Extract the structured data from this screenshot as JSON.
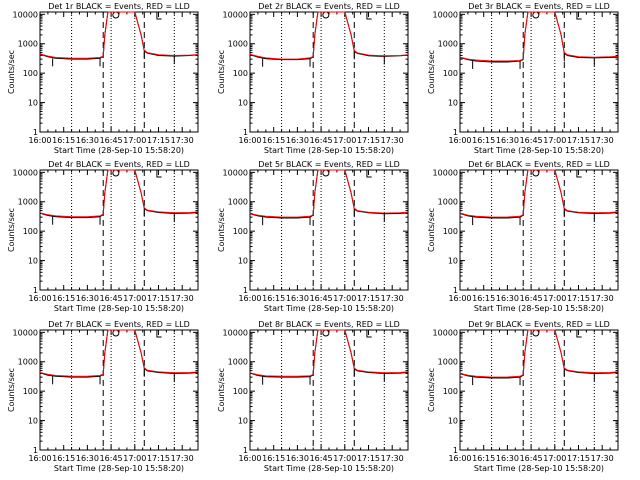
{
  "figure": {
    "xlabel": "Start Time (28-Sep-10 15:58:20)",
    "ylabel": "Counts/sec",
    "xticks": [
      "16:00",
      "16:15",
      "16:30",
      "16:45",
      "17:00",
      "17:15",
      "17:30"
    ],
    "yticks": [
      "1",
      "10",
      "100",
      "1000",
      "10000"
    ],
    "colors": {
      "events": "#000000",
      "lld": "#ff0000"
    }
  },
  "chart_data": [
    {
      "type": "line",
      "title": "Det 1r BLACK = Events, RED = LLD",
      "xlabel": "Start Time (28-Sep-10 15:58:20)",
      "ylabel": "Counts/sec",
      "y_scale": "log",
      "ylim": [
        1,
        12000
      ],
      "xlim_minutes_after_16:00": [
        0,
        100
      ],
      "dotted_vertical_lines_minutes_after_16:00": [
        20,
        45,
        60,
        85
      ],
      "dashed_vertical_lines_minutes_after_16:00": [
        40,
        66
      ],
      "series": [
        {
          "color": "red",
          "x_minutes_after_16:00": [
            0,
            5,
            10,
            20,
            30,
            38,
            40,
            41,
            43,
            60,
            64,
            66,
            68,
            75,
            85,
            95,
            100
          ],
          "y": [
            450,
            380,
            340,
            320,
            320,
            340,
            380,
            2000,
            12000,
            12000,
            2000,
            600,
            500,
            420,
            400,
            410,
            430
          ]
        },
        {
          "color": "black",
          "x_minutes_after_16:00": [
            0,
            5,
            10,
            20,
            30,
            38,
            40,
            41,
            43,
            60,
            64,
            66,
            68,
            75,
            85,
            95,
            100
          ],
          "y": [
            440,
            360,
            320,
            300,
            300,
            320,
            370,
            2000,
            12000,
            12000,
            2000,
            560,
            480,
            400,
            380,
            400,
            420
          ]
        }
      ]
    },
    {
      "type": "line",
      "title": "Det 2r BLACK = Events, RED = LLD",
      "xlabel": "Start Time (28-Sep-10 15:58:20)",
      "ylabel": "Counts/sec",
      "y_scale": "log",
      "ylim": [
        1,
        12000
      ],
      "xlim_minutes_after_16:00": [
        0,
        100
      ],
      "dotted_vertical_lines_minutes_after_16:00": [
        20,
        45,
        60,
        85
      ],
      "dashed_vertical_lines_minutes_after_16:00": [
        40,
        66
      ],
      "series": [
        {
          "color": "red",
          "x_minutes_after_16:00": [
            0,
            5,
            10,
            20,
            30,
            38,
            40,
            41,
            43,
            60,
            64,
            66,
            68,
            75,
            85,
            95,
            100
          ],
          "y": [
            440,
            370,
            330,
            300,
            300,
            330,
            370,
            2000,
            12000,
            12000,
            2000,
            590,
            490,
            410,
            390,
            400,
            420
          ]
        },
        {
          "color": "black",
          "x_minutes_after_16:00": [
            0,
            5,
            10,
            20,
            30,
            38,
            40,
            41,
            43,
            60,
            64,
            66,
            68,
            75,
            85,
            95,
            100
          ],
          "y": [
            430,
            350,
            310,
            290,
            290,
            310,
            360,
            2000,
            12000,
            12000,
            2000,
            550,
            470,
            390,
            370,
            390,
            410
          ]
        }
      ]
    },
    {
      "type": "line",
      "title": "Det 3r BLACK = Events, RED = LLD",
      "xlabel": "Start Time (28-Sep-10 15:58:20)",
      "ylabel": "Counts/sec",
      "y_scale": "log",
      "ylim": [
        1,
        12000
      ],
      "xlim_minutes_after_16:00": [
        0,
        100
      ],
      "dotted_vertical_lines_minutes_after_16:00": [
        20,
        45,
        60,
        85
      ],
      "dashed_vertical_lines_minutes_after_16:00": [
        40,
        66
      ],
      "series": [
        {
          "color": "red",
          "x_minutes_after_16:00": [
            0,
            5,
            10,
            20,
            30,
            38,
            40,
            41,
            43,
            60,
            64,
            66,
            68,
            75,
            85,
            95,
            100
          ],
          "y": [
            350,
            300,
            280,
            260,
            260,
            270,
            300,
            2000,
            12000,
            12000,
            2000,
            500,
            420,
            360,
            350,
            360,
            370
          ]
        },
        {
          "color": "black",
          "x_minutes_after_16:00": [
            0,
            5,
            10,
            20,
            30,
            38,
            40,
            41,
            43,
            60,
            64,
            66,
            68,
            75,
            85,
            95,
            100
          ],
          "y": [
            340,
            290,
            260,
            240,
            240,
            260,
            290,
            2000,
            12000,
            12000,
            2000,
            470,
            400,
            340,
            330,
            340,
            350
          ]
        }
      ]
    },
    {
      "type": "line",
      "title": "Det 4r BLACK = Events, RED = LLD",
      "xlabel": "Start Time (28-Sep-10 15:58:20)",
      "ylabel": "Counts/sec",
      "y_scale": "log",
      "ylim": [
        1,
        12000
      ],
      "xlim_minutes_after_16:00": [
        0,
        100
      ],
      "dotted_vertical_lines_minutes_after_16:00": [
        20,
        45,
        60,
        85
      ],
      "dashed_vertical_lines_minutes_after_16:00": [
        40,
        66
      ],
      "series": [
        {
          "color": "red",
          "x_minutes_after_16:00": [
            0,
            5,
            10,
            20,
            30,
            38,
            40,
            41,
            43,
            60,
            64,
            66,
            68,
            75,
            85,
            95,
            100
          ],
          "y": [
            420,
            360,
            330,
            310,
            310,
            330,
            380,
            2000,
            12000,
            12000,
            2000,
            620,
            520,
            450,
            420,
            430,
            450
          ]
        },
        {
          "color": "black",
          "x_minutes_after_16:00": [
            0,
            5,
            10,
            20,
            30,
            38,
            40,
            41,
            43,
            60,
            64,
            66,
            68,
            75,
            85,
            95,
            100
          ],
          "y": [
            410,
            340,
            310,
            290,
            290,
            310,
            370,
            2000,
            12000,
            12000,
            2000,
            580,
            500,
            430,
            400,
            410,
            430
          ]
        }
      ]
    },
    {
      "type": "line",
      "title": "Det 5r BLACK = Events, RED = LLD",
      "xlabel": "Start Time (28-Sep-10 15:58:20)",
      "ylabel": "Counts/sec",
      "y_scale": "log",
      "ylim": [
        1,
        12000
      ],
      "xlim_minutes_after_16:00": [
        0,
        100
      ],
      "dotted_vertical_lines_minutes_after_16:00": [
        20,
        45,
        60,
        85
      ],
      "dashed_vertical_lines_minutes_after_16:00": [
        40,
        66
      ],
      "series": [
        {
          "color": "red",
          "x_minutes_after_16:00": [
            0,
            5,
            10,
            20,
            30,
            38,
            40,
            41,
            43,
            60,
            64,
            66,
            68,
            75,
            85,
            95,
            100
          ],
          "y": [
            400,
            350,
            320,
            300,
            300,
            320,
            360,
            2000,
            12000,
            12000,
            2000,
            600,
            500,
            440,
            410,
            420,
            440
          ]
        },
        {
          "color": "black",
          "x_minutes_after_16:00": [
            0,
            5,
            10,
            20,
            30,
            38,
            40,
            41,
            43,
            60,
            64,
            66,
            68,
            75,
            85,
            95,
            100
          ],
          "y": [
            390,
            330,
            300,
            280,
            280,
            300,
            350,
            2000,
            12000,
            12000,
            2000,
            560,
            480,
            420,
            390,
            400,
            420
          ]
        }
      ]
    },
    {
      "type": "line",
      "title": "Det 6r BLACK = Events, RED = LLD",
      "xlabel": "Start Time (28-Sep-10 15:58:20)",
      "ylabel": "Counts/sec",
      "y_scale": "log",
      "ylim": [
        1,
        12000
      ],
      "xlim_minutes_after_16:00": [
        0,
        100
      ],
      "dotted_vertical_lines_minutes_after_16:00": [
        20,
        45,
        60,
        85
      ],
      "dashed_vertical_lines_minutes_after_16:00": [
        40,
        66
      ],
      "series": [
        {
          "color": "red",
          "x_minutes_after_16:00": [
            0,
            5,
            10,
            20,
            30,
            38,
            40,
            41,
            43,
            60,
            64,
            66,
            68,
            75,
            85,
            95,
            100
          ],
          "y": [
            410,
            350,
            320,
            300,
            300,
            320,
            360,
            2000,
            12000,
            12000,
            2000,
            600,
            500,
            440,
            420,
            430,
            450
          ]
        },
        {
          "color": "black",
          "x_minutes_after_16:00": [
            0,
            5,
            10,
            20,
            30,
            38,
            40,
            41,
            43,
            60,
            64,
            66,
            68,
            75,
            85,
            95,
            100
          ],
          "y": [
            400,
            330,
            300,
            280,
            280,
            300,
            350,
            2000,
            12000,
            12000,
            2000,
            560,
            480,
            420,
            400,
            410,
            430
          ]
        }
      ]
    },
    {
      "type": "line",
      "title": "Det 7r BLACK = Events, RED = LLD",
      "xlabel": "Start Time (28-Sep-10 15:58:20)",
      "ylabel": "Counts/sec",
      "y_scale": "log",
      "ylim": [
        1,
        12000
      ],
      "xlim_minutes_after_16:00": [
        0,
        100
      ],
      "dotted_vertical_lines_minutes_after_16:00": [
        20,
        45,
        60,
        85
      ],
      "dashed_vertical_lines_minutes_after_16:00": [
        40,
        66
      ],
      "series": [
        {
          "color": "red",
          "x_minutes_after_16:00": [
            0,
            5,
            10,
            20,
            30,
            38,
            40,
            41,
            43,
            60,
            64,
            66,
            68,
            75,
            85,
            95,
            100
          ],
          "y": [
            430,
            370,
            340,
            320,
            320,
            340,
            380,
            2000,
            12000,
            12000,
            2000,
            620,
            510,
            450,
            420,
            430,
            450
          ]
        },
        {
          "color": "black",
          "x_minutes_after_16:00": [
            0,
            5,
            10,
            20,
            30,
            38,
            40,
            41,
            43,
            60,
            64,
            66,
            68,
            75,
            85,
            95,
            100
          ],
          "y": [
            420,
            350,
            320,
            300,
            300,
            320,
            370,
            2000,
            12000,
            12000,
            2000,
            580,
            490,
            430,
            400,
            410,
            430
          ]
        }
      ]
    },
    {
      "type": "line",
      "title": "Det 8r BLACK = Events, RED = LLD",
      "xlabel": "Start Time (28-Sep-10 15:58:20)",
      "ylabel": "Counts/sec",
      "y_scale": "log",
      "ylim": [
        1,
        12000
      ],
      "xlim_minutes_after_16:00": [
        0,
        100
      ],
      "dotted_vertical_lines_minutes_after_16:00": [
        20,
        45,
        60,
        85
      ],
      "dashed_vertical_lines_minutes_after_16:00": [
        40,
        66
      ],
      "series": [
        {
          "color": "red",
          "x_minutes_after_16:00": [
            0,
            5,
            10,
            20,
            30,
            38,
            40,
            41,
            43,
            60,
            64,
            66,
            68,
            75,
            85,
            95,
            100
          ],
          "y": [
            420,
            360,
            330,
            320,
            320,
            330,
            370,
            2000,
            12000,
            12000,
            2000,
            610,
            510,
            450,
            420,
            430,
            450
          ]
        },
        {
          "color": "black",
          "x_minutes_after_16:00": [
            0,
            5,
            10,
            20,
            30,
            38,
            40,
            41,
            43,
            60,
            64,
            66,
            68,
            75,
            85,
            95,
            100
          ],
          "y": [
            410,
            340,
            310,
            300,
            300,
            310,
            360,
            2000,
            12000,
            12000,
            2000,
            570,
            490,
            430,
            400,
            410,
            430
          ]
        }
      ]
    },
    {
      "type": "line",
      "title": "Det 9r BLACK = Events, RED = LLD",
      "xlabel": "Start Time (28-Sep-10 15:58:20)",
      "ylabel": "Counts/sec",
      "y_scale": "log",
      "ylim": [
        1,
        12000
      ],
      "xlim_minutes_after_16:00": [
        0,
        100
      ],
      "dotted_vertical_lines_minutes_after_16:00": [
        20,
        45,
        60,
        85
      ],
      "dashed_vertical_lines_minutes_after_16:00": [
        40,
        66
      ],
      "series": [
        {
          "color": "red",
          "x_minutes_after_16:00": [
            0,
            5,
            10,
            20,
            30,
            38,
            40,
            41,
            43,
            60,
            64,
            66,
            68,
            75,
            85,
            95,
            100
          ],
          "y": [
            400,
            350,
            320,
            300,
            300,
            320,
            360,
            2000,
            12000,
            12000,
            2000,
            610,
            520,
            450,
            420,
            430,
            450
          ]
        },
        {
          "color": "black",
          "x_minutes_after_16:00": [
            0,
            5,
            10,
            20,
            30,
            38,
            40,
            41,
            43,
            60,
            64,
            66,
            68,
            75,
            85,
            95,
            100
          ],
          "y": [
            390,
            330,
            300,
            280,
            280,
            300,
            350,
            2000,
            12000,
            12000,
            2000,
            570,
            500,
            430,
            400,
            410,
            430
          ]
        }
      ]
    }
  ]
}
